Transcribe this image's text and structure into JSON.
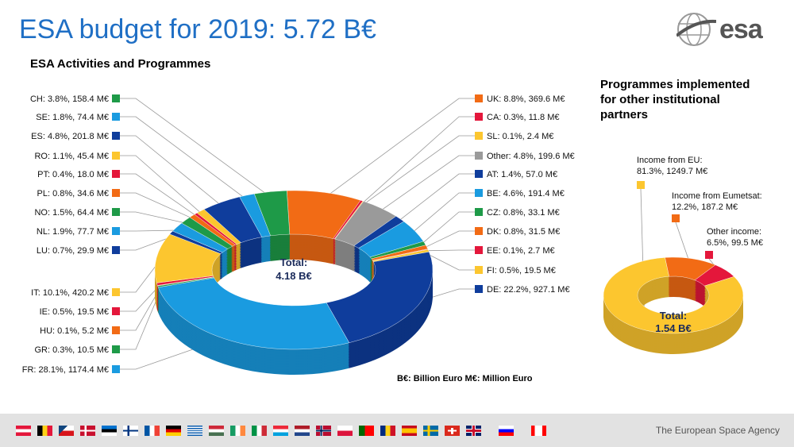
{
  "title": "ESA budget for 2019: 5.72 B€",
  "logo_text": "esa",
  "footer_text": "The European Space Agency",
  "note": "B€: Billion Euro   M€: Million Euro",
  "flags": [
    "AT",
    "BE",
    "CZ",
    "DK",
    "EE",
    "FI",
    "FR",
    "DE",
    "GR",
    "HU",
    "IE",
    "IT",
    "LU",
    "NL",
    "NO",
    "PL",
    "PT",
    "RO",
    "ES",
    "SE",
    "CH",
    "UK",
    "SI",
    "CA"
  ],
  "colors": {
    "green": "#1e9a48",
    "lightblue": "#1a9be0",
    "darkblue": "#0f3d9c",
    "yellow": "#fcc62f",
    "red": "#e4173b",
    "orange": "#f26b15",
    "gray": "#9a9a9a",
    "title": "#1f6fc5"
  },
  "chart_data": [
    {
      "type": "pie",
      "style": "3d-donut",
      "title": "ESA Activities and Programmes",
      "center_label": "Total:",
      "center_value": "4.18 B€",
      "slices": [
        {
          "code": "UK",
          "pct": 8.8,
          "value": 369.6,
          "color": "orange",
          "side": "right",
          "label": "UK: 8.8%, 369.6 M€"
        },
        {
          "code": "CA",
          "pct": 0.3,
          "value": 11.8,
          "color": "red",
          "side": "right",
          "label": "CA: 0.3%, 11.8 M€"
        },
        {
          "code": "SL",
          "pct": 0.1,
          "value": 2.4,
          "color": "yellow",
          "side": "right",
          "label": "SL: 0.1%, 2.4 M€"
        },
        {
          "code": "Other",
          "pct": 4.8,
          "value": 199.6,
          "color": "gray",
          "side": "right",
          "label": "Other: 4.8%, 199.6 M€"
        },
        {
          "code": "AT",
          "pct": 1.4,
          "value": 57.0,
          "color": "darkblue",
          "side": "right",
          "label": "AT: 1.4%, 57.0 M€"
        },
        {
          "code": "BE",
          "pct": 4.6,
          "value": 191.4,
          "color": "lightblue",
          "side": "right",
          "label": "BE: 4.6%, 191.4 M€"
        },
        {
          "code": "CZ",
          "pct": 0.8,
          "value": 33.1,
          "color": "green",
          "side": "right",
          "label": "CZ: 0.8%, 33.1 M€"
        },
        {
          "code": "DK",
          "pct": 0.8,
          "value": 31.5,
          "color": "orange",
          "side": "right",
          "label": "DK: 0.8%, 31.5 M€"
        },
        {
          "code": "EE",
          "pct": 0.1,
          "value": 2.7,
          "color": "red",
          "side": "right",
          "label": "EE: 0.1%, 2.7 M€"
        },
        {
          "code": "FI",
          "pct": 0.5,
          "value": 19.5,
          "color": "yellow",
          "side": "right",
          "label": "FI: 0.5%, 19.5 M€"
        },
        {
          "code": "DE",
          "pct": 22.2,
          "value": 927.1,
          "color": "darkblue",
          "side": "right",
          "label": "DE: 22.2%, 927.1 M€"
        },
        {
          "code": "FR",
          "pct": 28.1,
          "value": 1174.4,
          "color": "lightblue",
          "side": "left",
          "label": "FR: 28.1%, 1174.4 M€"
        },
        {
          "code": "GR",
          "pct": 0.3,
          "value": 10.5,
          "color": "green",
          "side": "left",
          "label": "GR: 0.3%, 10.5 M€"
        },
        {
          "code": "HU",
          "pct": 0.1,
          "value": 5.2,
          "color": "orange",
          "side": "left",
          "label": "HU: 0.1%, 5.2 M€"
        },
        {
          "code": "IE",
          "pct": 0.5,
          "value": 19.5,
          "color": "red",
          "side": "left",
          "label": "IE: 0.5%, 19.5 M€"
        },
        {
          "code": "IT",
          "pct": 10.1,
          "value": 420.2,
          "color": "yellow",
          "side": "left",
          "label": "IT: 10.1%, 420.2 M€"
        },
        {
          "code": "LU",
          "pct": 0.7,
          "value": 29.9,
          "color": "darkblue",
          "side": "left",
          "label": "LU: 0.7%, 29.9 M€"
        },
        {
          "code": "NL",
          "pct": 1.9,
          "value": 77.7,
          "color": "lightblue",
          "side": "left",
          "label": "NL: 1.9%, 77.7 M€"
        },
        {
          "code": "NO",
          "pct": 1.5,
          "value": 64.4,
          "color": "green",
          "side": "left",
          "label": "NO: 1.5%, 64.4 M€"
        },
        {
          "code": "PL",
          "pct": 0.8,
          "value": 34.6,
          "color": "orange",
          "side": "left",
          "label": "PL: 0.8%, 34.6 M€"
        },
        {
          "code": "PT",
          "pct": 0.4,
          "value": 18.0,
          "color": "red",
          "side": "left",
          "label": "PT: 0.4%, 18.0 M€"
        },
        {
          "code": "RO",
          "pct": 1.1,
          "value": 45.4,
          "color": "yellow",
          "side": "left",
          "label": "RO: 1.1%, 45.4 M€"
        },
        {
          "code": "ES",
          "pct": 4.8,
          "value": 201.8,
          "color": "darkblue",
          "side": "left",
          "label": "ES: 4.8%, 201.8 M€"
        },
        {
          "code": "SE",
          "pct": 1.8,
          "value": 74.4,
          "color": "lightblue",
          "side": "left",
          "label": "SE: 1.8%, 74.4 M€"
        },
        {
          "code": "CH",
          "pct": 3.8,
          "value": 158.4,
          "color": "green",
          "side": "left",
          "label": "CH: 3.8%, 158.4 M€"
        }
      ]
    },
    {
      "type": "pie",
      "style": "3d-donut",
      "title": "Programmes implemented for other institutional partners",
      "center_label": "Total:",
      "center_value": "1.54 B€",
      "slices": [
        {
          "code": "Eumetsat",
          "pct": 12.2,
          "value": 187.2,
          "color": "orange",
          "label_lines": [
            "Income from Eumetsat:",
            "12.2%, 187.2 M€"
          ]
        },
        {
          "code": "Other",
          "pct": 6.5,
          "value": 99.5,
          "color": "red",
          "label_lines": [
            "Other income:",
            "6.5%, 99.5 M€"
          ]
        },
        {
          "code": "EU",
          "pct": 81.3,
          "value": 1249.7,
          "color": "yellow",
          "label_lines": [
            "Income from EU:",
            "81.3%, 1249.7 M€"
          ]
        }
      ]
    }
  ]
}
